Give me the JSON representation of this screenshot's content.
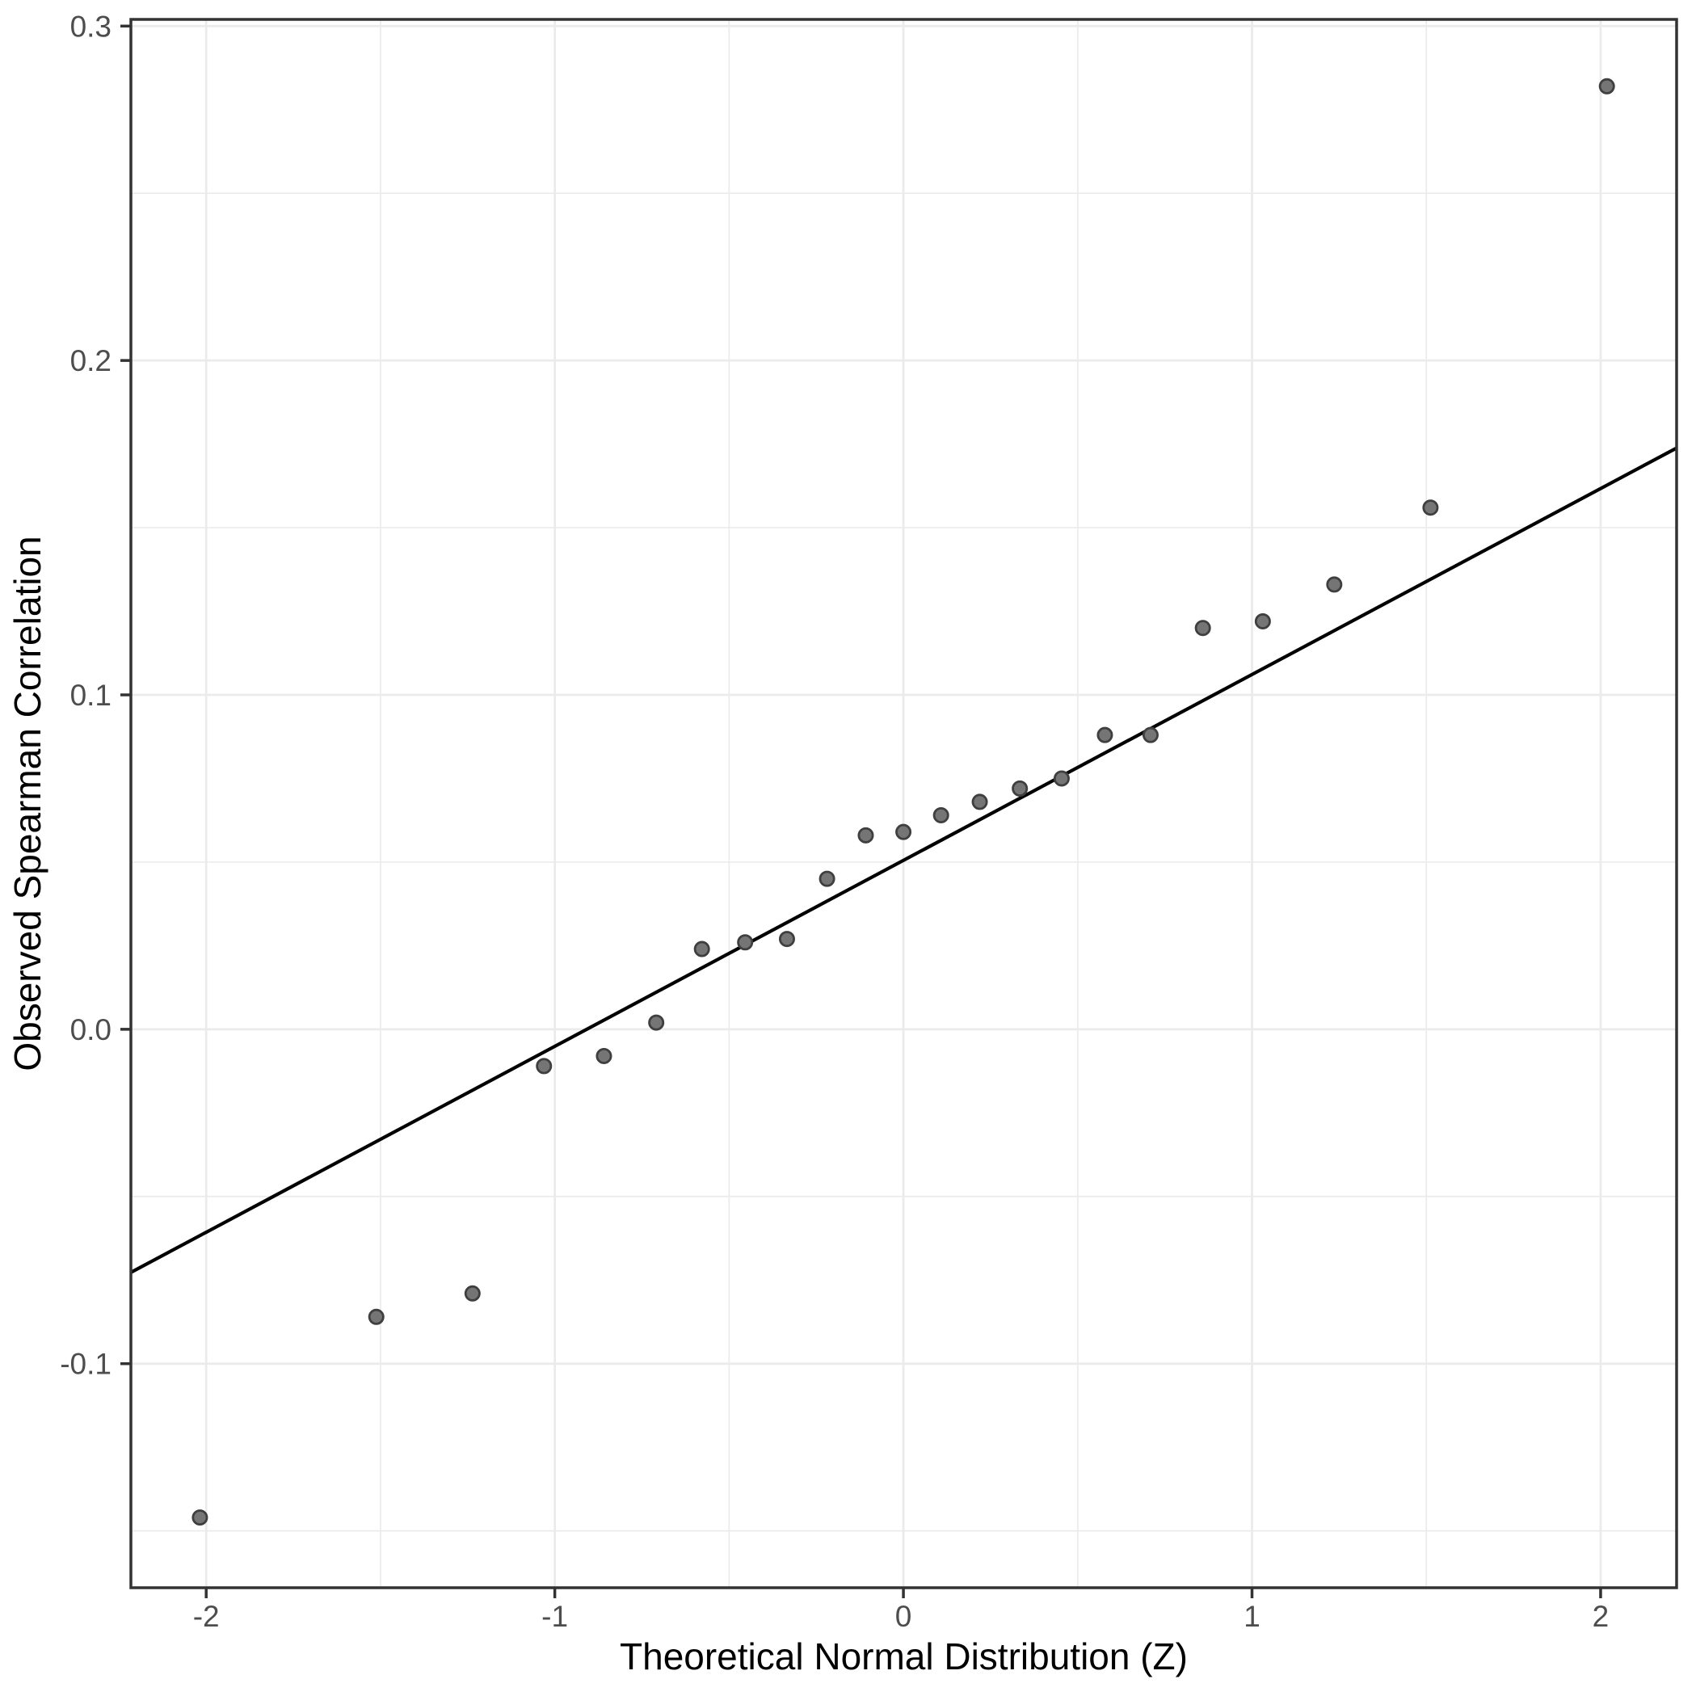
{
  "chart_data": {
    "type": "scatter",
    "title": "",
    "xlabel": "Theoretical Normal Distribution (Z)",
    "ylabel": "Observed Spearman Correlation",
    "x_ticks": [
      -2,
      -1,
      0,
      1,
      2
    ],
    "x_tick_labels": [
      "-2",
      "-1",
      "0",
      "1",
      "2"
    ],
    "y_ticks": [
      -0.1,
      0.0,
      0.1,
      0.2,
      0.3
    ],
    "y_tick_labels": [
      "-0.1",
      "0.0",
      "0.1",
      "0.2",
      "0.3"
    ],
    "x_minor_gridlines": [
      -1.5,
      -0.5,
      0.5,
      1.5
    ],
    "y_minor_gridlines": [
      -0.15,
      -0.05,
      0.05,
      0.15,
      0.25
    ],
    "xlim": [
      -2.216,
      2.218
    ],
    "ylim": [
      -0.167,
      0.302
    ],
    "grid": true,
    "legend": "none",
    "points": [
      [
        -2.018,
        -0.146
      ],
      [
        -1.512,
        -0.086
      ],
      [
        -1.236,
        -0.079
      ],
      [
        -1.031,
        -0.011
      ],
      [
        -0.859,
        -0.008
      ],
      [
        -0.709,
        0.002
      ],
      [
        -0.578,
        0.024
      ],
      [
        -0.454,
        0.026
      ],
      [
        -0.334,
        0.027
      ],
      [
        -0.219,
        0.045
      ],
      [
        -0.108,
        0.058
      ],
      [
        0.0,
        0.059
      ],
      [
        0.108,
        0.064
      ],
      [
        0.219,
        0.068
      ],
      [
        0.334,
        0.072
      ],
      [
        0.454,
        0.075
      ],
      [
        0.578,
        0.088
      ],
      [
        0.709,
        0.088
      ],
      [
        0.859,
        0.12
      ],
      [
        1.031,
        0.122
      ],
      [
        1.236,
        0.133
      ],
      [
        1.512,
        0.156
      ],
      [
        2.018,
        0.282
      ]
    ],
    "reference_line": {
      "intercept": 0.0505,
      "slope": 0.0556
    },
    "colors": {
      "point_fill": "#757575",
      "point_stroke": "#3f3f3f",
      "reference_line": "#000000",
      "grid": "#ebebeb",
      "axis": "#333333",
      "tick_label": "#4d4d4d",
      "axis_title": "#000000",
      "background": "#ffffff"
    }
  }
}
